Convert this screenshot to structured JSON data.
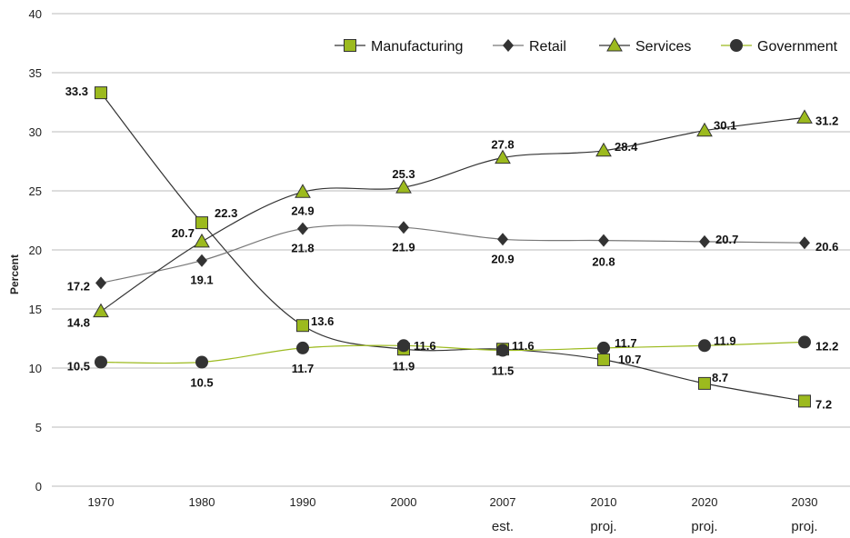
{
  "chart_data": {
    "type": "line",
    "title": "",
    "xlabel": "",
    "ylabel": "Percent",
    "ylim": [
      0,
      40
    ],
    "yticks": [
      "0",
      "5",
      "10",
      "15",
      "20",
      "25",
      "30",
      "35",
      "40"
    ],
    "categories": [
      "1970",
      "1980",
      "1990",
      "2000",
      "2007",
      "2010",
      "2020",
      "2030"
    ],
    "category_sublabels": [
      "",
      "",
      "",
      "",
      "est.",
      "proj.",
      "proj.",
      "proj."
    ],
    "grid": true,
    "legend_position": "top-right",
    "series": [
      {
        "name": "Manufacturing",
        "marker": "square",
        "color": "#9cba1e",
        "line_color": "#333333",
        "values": [
          33.3,
          22.3,
          13.6,
          11.6,
          11.6,
          10.7,
          8.7,
          7.2
        ],
        "labels": [
          "33.3",
          "22.3",
          "13.6",
          "11.6",
          "11.6",
          "10.7",
          "8.7",
          "7.2"
        ]
      },
      {
        "name": "Retail",
        "marker": "diamond",
        "color": "#333333",
        "line_color": "#777777",
        "values": [
          17.2,
          19.1,
          21.8,
          21.9,
          20.9,
          20.8,
          20.7,
          20.6
        ],
        "labels": [
          "17.2",
          "19.1",
          "21.8",
          "21.9",
          "20.9",
          "20.8",
          "20.7",
          "20.6"
        ]
      },
      {
        "name": "Services",
        "marker": "triangle",
        "color": "#9cba1e",
        "line_color": "#333333",
        "values": [
          14.8,
          20.7,
          24.9,
          25.3,
          27.8,
          28.4,
          30.1,
          31.2
        ],
        "labels": [
          "14.8",
          "20.7",
          "24.9",
          "25.3",
          "27.8",
          "28.4",
          "30.1",
          "31.2"
        ]
      },
      {
        "name": "Government",
        "marker": "circle",
        "color": "#333333",
        "line_color": "#9cba1e",
        "values": [
          10.5,
          10.5,
          11.7,
          11.9,
          11.5,
          11.7,
          11.9,
          12.2
        ],
        "labels": [
          "10.5",
          "10.5",
          "11.7",
          "11.9",
          "11.5",
          "11.7",
          "11.9",
          "12.2"
        ]
      }
    ]
  }
}
